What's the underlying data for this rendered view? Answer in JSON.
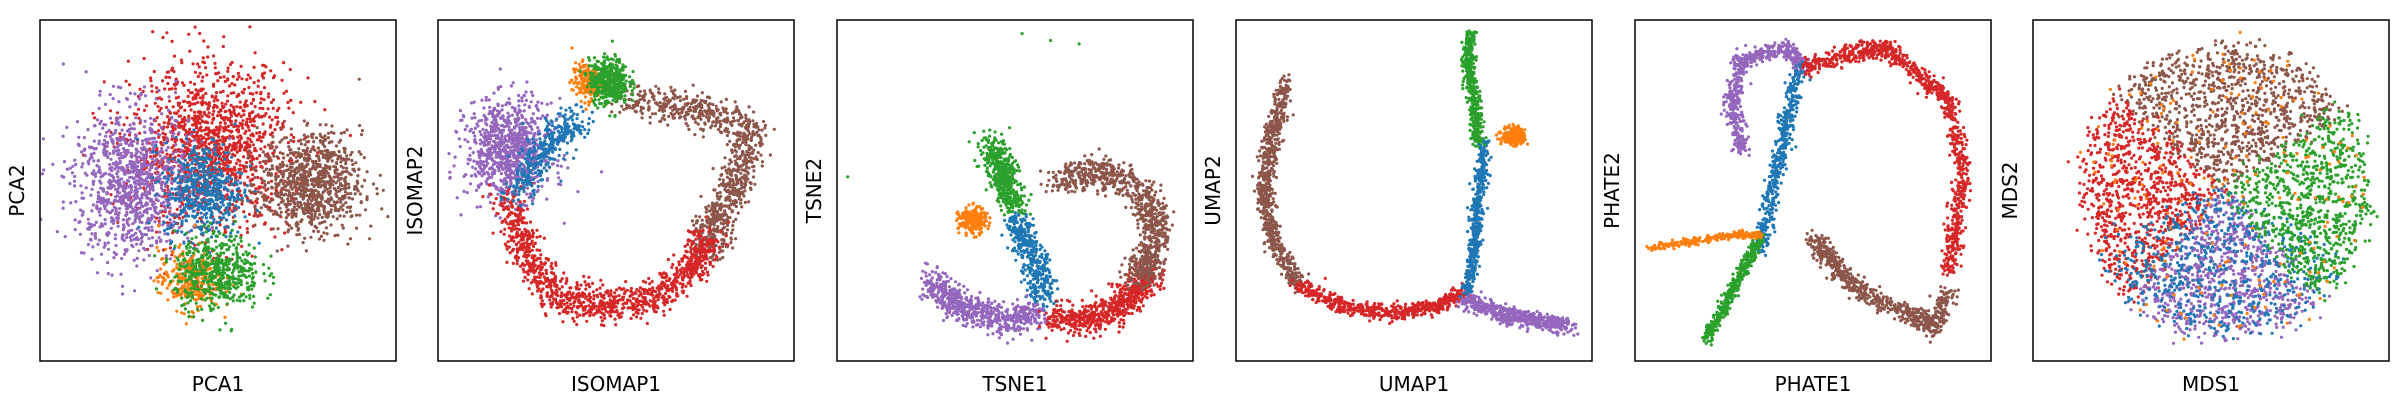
{
  "colors": {
    "blue": "#1f77b4",
    "orange": "#ff7f0e",
    "green": "#2ca02c",
    "red": "#d62728",
    "purple": "#9467bd",
    "brown": "#8c564b"
  },
  "chart_data": [
    {
      "type": "scatter",
      "xlabel": "PCA1",
      "ylabel": "PCA2",
      "ticks": "none",
      "xlim": [
        0,
        1
      ],
      "ylim": [
        0,
        1
      ],
      "clusters": [
        {
          "color": "red",
          "shape": "blob",
          "center": [
            0.48,
            0.62
          ],
          "spread": [
            0.2,
            0.22
          ],
          "count": 1400
        },
        {
          "color": "purple",
          "shape": "blob",
          "center": [
            0.26,
            0.52
          ],
          "spread": [
            0.15,
            0.2
          ],
          "count": 1000
        },
        {
          "color": "brown",
          "shape": "blob",
          "center": [
            0.76,
            0.52
          ],
          "spread": [
            0.13,
            0.13
          ],
          "count": 900
        },
        {
          "color": "blue",
          "shape": "blob",
          "center": [
            0.46,
            0.5
          ],
          "spread": [
            0.1,
            0.13
          ],
          "count": 500
        },
        {
          "color": "orange",
          "shape": "blob",
          "center": [
            0.42,
            0.24
          ],
          "spread": [
            0.08,
            0.08
          ],
          "count": 300
        },
        {
          "color": "green",
          "shape": "blob",
          "center": [
            0.5,
            0.26
          ],
          "spread": [
            0.11,
            0.1
          ],
          "count": 500
        }
      ]
    },
    {
      "type": "scatter",
      "xlabel": "ISOMAP1",
      "ylabel": "ISOMAP2",
      "ticks": "none",
      "xlim": [
        0,
        1
      ],
      "ylim": [
        0,
        1
      ],
      "clusters": [
        {
          "color": "purple",
          "shape": "blob",
          "center": [
            0.2,
            0.62
          ],
          "spread": [
            0.11,
            0.13
          ],
          "count": 900
        },
        {
          "color": "brown",
          "shape": "curve",
          "path": [
            [
              0.52,
              0.76
            ],
            [
              0.72,
              0.74
            ],
            [
              0.88,
              0.68
            ],
            [
              0.84,
              0.52
            ],
            [
              0.78,
              0.42
            ],
            [
              0.76,
              0.32
            ]
          ],
          "width": 0.05,
          "count": 900
        },
        {
          "color": "red",
          "shape": "curve",
          "path": [
            [
              0.2,
              0.48
            ],
            [
              0.24,
              0.32
            ],
            [
              0.32,
              0.2
            ],
            [
              0.46,
              0.16
            ],
            [
              0.6,
              0.18
            ],
            [
              0.72,
              0.28
            ],
            [
              0.76,
              0.36
            ]
          ],
          "width": 0.05,
          "count": 1100
        },
        {
          "color": "blue",
          "shape": "curve",
          "path": [
            [
              0.22,
              0.5
            ],
            [
              0.3,
              0.62
            ],
            [
              0.4,
              0.72
            ]
          ],
          "width": 0.05,
          "count": 350
        },
        {
          "color": "orange",
          "shape": "blob",
          "center": [
            0.42,
            0.82
          ],
          "spread": [
            0.04,
            0.05
          ],
          "count": 200
        },
        {
          "color": "green",
          "shape": "blob",
          "center": [
            0.48,
            0.82
          ],
          "spread": [
            0.05,
            0.06
          ],
          "count": 450
        }
      ]
    },
    {
      "type": "scatter",
      "xlabel": "TSNE1",
      "ylabel": "TSNE2",
      "ticks": "none",
      "xlim": [
        0,
        1
      ],
      "ylim": [
        0,
        1
      ],
      "clusters": [
        {
          "color": "green",
          "shape": "curve",
          "path": [
            [
              0.43,
              0.64
            ],
            [
              0.47,
              0.54
            ],
            [
              0.5,
              0.44
            ]
          ],
          "width": 0.04,
          "count": 450
        },
        {
          "color": "orange",
          "shape": "blob",
          "center": [
            0.38,
            0.41
          ],
          "spread": [
            0.035,
            0.035
          ],
          "count": 220
        },
        {
          "color": "blue",
          "shape": "curve",
          "path": [
            [
              0.5,
              0.42
            ],
            [
              0.55,
              0.3
            ],
            [
              0.58,
              0.18
            ]
          ],
          "width": 0.04,
          "count": 400
        },
        {
          "color": "purple",
          "shape": "curve",
          "path": [
            [
              0.26,
              0.24
            ],
            [
              0.34,
              0.16
            ],
            [
              0.46,
              0.12
            ],
            [
              0.56,
              0.14
            ]
          ],
          "width": 0.045,
          "count": 650
        },
        {
          "color": "red",
          "shape": "curve",
          "path": [
            [
              0.6,
              0.12
            ],
            [
              0.72,
              0.12
            ],
            [
              0.82,
              0.18
            ],
            [
              0.88,
              0.26
            ]
          ],
          "width": 0.045,
          "count": 650
        },
        {
          "color": "brown",
          "shape": "curve",
          "path": [
            [
              0.62,
              0.52
            ],
            [
              0.74,
              0.56
            ],
            [
              0.85,
              0.5
            ],
            [
              0.9,
              0.4
            ],
            [
              0.88,
              0.3
            ],
            [
              0.84,
              0.24
            ]
          ],
          "width": 0.045,
          "count": 850
        },
        {
          "color": "green",
          "shape": "points",
          "points": [
            [
              0.52,
              0.96
            ],
            [
              0.6,
              0.94
            ],
            [
              0.68,
              0.93
            ],
            [
              0.03,
              0.54
            ]
          ],
          "count": 4
        }
      ]
    },
    {
      "type": "scatter",
      "xlabel": "UMAP1",
      "ylabel": "UMAP2",
      "ticks": "none",
      "xlim": [
        0,
        1
      ],
      "ylim": [
        0,
        1
      ],
      "clusters": [
        {
          "color": "brown",
          "shape": "curve",
          "path": [
            [
              0.14,
              0.82
            ],
            [
              0.1,
              0.66
            ],
            [
              0.08,
              0.5
            ],
            [
              0.1,
              0.36
            ],
            [
              0.18,
              0.22
            ]
          ],
          "width": 0.025,
          "count": 700
        },
        {
          "color": "red",
          "shape": "curve",
          "path": [
            [
              0.18,
              0.22
            ],
            [
              0.3,
              0.16
            ],
            [
              0.44,
              0.14
            ],
            [
              0.56,
              0.16
            ],
            [
              0.64,
              0.2
            ]
          ],
          "width": 0.022,
          "count": 600
        },
        {
          "color": "purple",
          "shape": "curve",
          "path": [
            [
              0.64,
              0.18
            ],
            [
              0.74,
              0.14
            ],
            [
              0.84,
              0.12
            ],
            [
              0.94,
              0.1
            ]
          ],
          "width": 0.025,
          "count": 550
        },
        {
          "color": "blue",
          "shape": "curve",
          "path": [
            [
              0.7,
              0.64
            ],
            [
              0.68,
              0.48
            ],
            [
              0.67,
              0.34
            ],
            [
              0.65,
              0.2
            ]
          ],
          "width": 0.018,
          "count": 450
        },
        {
          "color": "green",
          "shape": "curve",
          "path": [
            [
              0.66,
              0.96
            ],
            [
              0.65,
              0.86
            ],
            [
              0.67,
              0.76
            ],
            [
              0.68,
              0.64
            ]
          ],
          "width": 0.017,
          "count": 450
        },
        {
          "color": "orange",
          "shape": "blob",
          "center": [
            0.78,
            0.66
          ],
          "spread": [
            0.03,
            0.025
          ],
          "count": 200
        }
      ]
    },
    {
      "type": "scatter",
      "xlabel": "PHATE1",
      "ylabel": "PHATE2",
      "ticks": "none",
      "xlim": [
        0,
        1
      ],
      "ylim": [
        0,
        1
      ],
      "clusters": [
        {
          "color": "purple",
          "shape": "curve",
          "path": [
            [
              0.3,
              0.62
            ],
            [
              0.27,
              0.76
            ],
            [
              0.3,
              0.88
            ],
            [
              0.42,
              0.92
            ],
            [
              0.48,
              0.86
            ]
          ],
          "width": 0.025,
          "count": 550
        },
        {
          "color": "red",
          "shape": "curve",
          "path": [
            [
              0.48,
              0.86
            ],
            [
              0.6,
              0.9
            ],
            [
              0.7,
              0.92
            ],
            [
              0.8,
              0.84
            ],
            [
              0.88,
              0.76
            ],
            [
              0.92,
              0.58
            ],
            [
              0.9,
              0.4
            ],
            [
              0.88,
              0.26
            ]
          ],
          "width": 0.025,
          "count": 900
        },
        {
          "color": "brown",
          "shape": "curve",
          "path": [
            [
              0.5,
              0.36
            ],
            [
              0.56,
              0.28
            ],
            [
              0.64,
              0.2
            ],
            [
              0.76,
              0.14
            ],
            [
              0.84,
              0.1
            ],
            [
              0.88,
              0.2
            ]
          ],
          "width": 0.03,
          "count": 650
        },
        {
          "color": "blue",
          "shape": "curve",
          "path": [
            [
              0.46,
              0.86
            ],
            [
              0.42,
              0.66
            ],
            [
              0.38,
              0.48
            ],
            [
              0.35,
              0.32
            ]
          ],
          "width": 0.022,
          "count": 450
        },
        {
          "color": "green",
          "shape": "curve",
          "path": [
            [
              0.35,
              0.36
            ],
            [
              0.28,
              0.22
            ],
            [
              0.2,
              0.06
            ]
          ],
          "width": 0.015,
          "count": 400
        },
        {
          "color": "orange",
          "shape": "curve",
          "path": [
            [
              0.04,
              0.33
            ],
            [
              0.16,
              0.35
            ],
            [
              0.28,
              0.37
            ],
            [
              0.35,
              0.37
            ]
          ],
          "width": 0.01,
          "count": 260
        }
      ]
    },
    {
      "type": "scatter",
      "xlabel": "MDS1",
      "ylabel": "MDS2",
      "ticks": "none",
      "xlim": [
        0,
        1
      ],
      "ylim": [
        0,
        1
      ],
      "clusters": [
        {
          "color": "brown",
          "shape": "disc",
          "center": [
            0.54,
            0.5
          ],
          "radius": 0.42,
          "angle": [
            35,
            140
          ],
          "count": 1000
        },
        {
          "color": "red",
          "shape": "disc",
          "center": [
            0.54,
            0.5
          ],
          "radius": 0.42,
          "angle": [
            140,
            230
          ],
          "count": 900
        },
        {
          "color": "purple",
          "shape": "disc",
          "center": [
            0.54,
            0.5
          ],
          "radius": 0.42,
          "angle": [
            230,
            310
          ],
          "count": 800
        },
        {
          "color": "blue",
          "shape": "disc",
          "center": [
            0.54,
            0.5
          ],
          "radius": 0.42,
          "angle": [
            205,
            330
          ],
          "count": 600
        },
        {
          "color": "green",
          "shape": "disc",
          "center": [
            0.54,
            0.5
          ],
          "radius": 0.42,
          "angle": [
            310,
            395
          ],
          "count": 800
        },
        {
          "color": "orange",
          "shape": "disc",
          "center": [
            0.54,
            0.5
          ],
          "radius": 0.42,
          "angle": [
            0,
            360
          ],
          "count": 200
        }
      ]
    }
  ]
}
